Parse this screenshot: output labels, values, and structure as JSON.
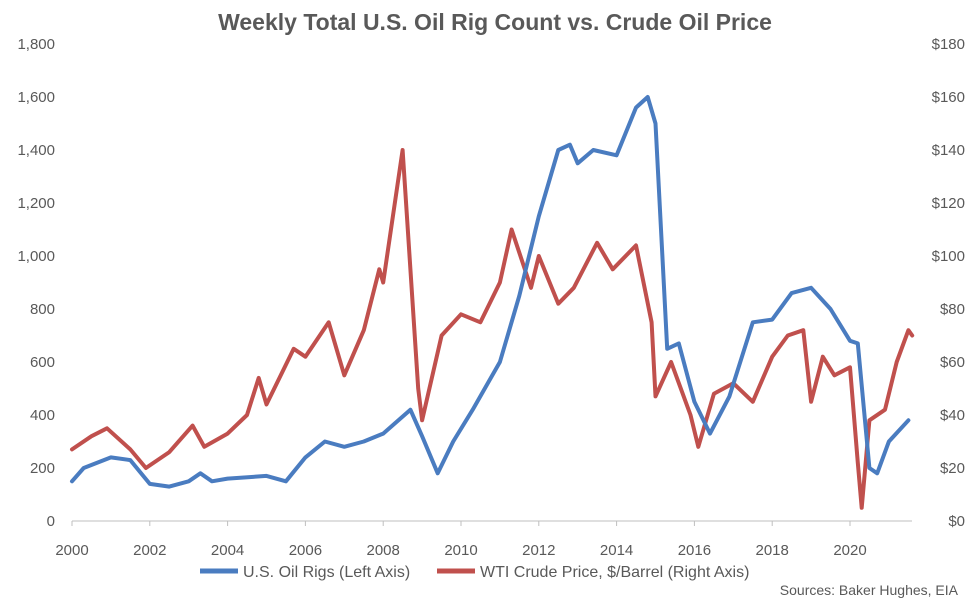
{
  "chart_data": {
    "type": "line",
    "title": "Weekly Total U.S. Oil Rig Count vs. Crude Oil Price",
    "xlabel": "",
    "ylabel_left": "",
    "ylabel_right": "",
    "x_range": [
      2000,
      2021.6
    ],
    "x_ticks": [
      "2000",
      "2002",
      "2004",
      "2006",
      "2008",
      "2010",
      "2012",
      "2014",
      "2016",
      "2018",
      "2020"
    ],
    "ylim_left": [
      0,
      1800
    ],
    "y_ticks_left": [
      "0",
      "200",
      "400",
      "600",
      "800",
      "1,000",
      "1,200",
      "1,400",
      "1,600",
      "1,800"
    ],
    "ylim_right": [
      0,
      180
    ],
    "y_ticks_right": [
      "$0",
      "$20",
      "$40",
      "$60",
      "$80",
      "$100",
      "$120",
      "$140",
      "$160",
      "$180"
    ],
    "grid": false,
    "legend_position": "bottom",
    "source": "Sources: Baker Hughes, EIA",
    "series": [
      {
        "name": "U.S. Oil Rigs (Left Axis)",
        "axis": "left",
        "color": "#4a7cc0",
        "points": [
          [
            2000,
            150
          ],
          [
            2000.3,
            200
          ],
          [
            2001,
            240
          ],
          [
            2001.5,
            230
          ],
          [
            2002,
            140
          ],
          [
            2002.5,
            130
          ],
          [
            2003,
            150
          ],
          [
            2003.3,
            180
          ],
          [
            2003.6,
            150
          ],
          [
            2004,
            160
          ],
          [
            2005,
            170
          ],
          [
            2005.5,
            150
          ],
          [
            2006,
            240
          ],
          [
            2006.5,
            300
          ],
          [
            2007,
            280
          ],
          [
            2007.5,
            300
          ],
          [
            2008,
            330
          ],
          [
            2008.7,
            420
          ],
          [
            2009,
            320
          ],
          [
            2009.4,
            180
          ],
          [
            2009.8,
            300
          ],
          [
            2010.3,
            420
          ],
          [
            2011,
            600
          ],
          [
            2011.5,
            850
          ],
          [
            2012,
            1150
          ],
          [
            2012.5,
            1400
          ],
          [
            2012.8,
            1420
          ],
          [
            2013,
            1350
          ],
          [
            2013.4,
            1400
          ],
          [
            2014,
            1380
          ],
          [
            2014.5,
            1560
          ],
          [
            2014.8,
            1600
          ],
          [
            2015,
            1500
          ],
          [
            2015.3,
            650
          ],
          [
            2015.6,
            670
          ],
          [
            2016,
            450
          ],
          [
            2016.4,
            330
          ],
          [
            2016.9,
            470
          ],
          [
            2017.5,
            750
          ],
          [
            2018,
            760
          ],
          [
            2018.5,
            860
          ],
          [
            2019,
            880
          ],
          [
            2019.5,
            800
          ],
          [
            2020,
            680
          ],
          [
            2020.2,
            670
          ],
          [
            2020.5,
            200
          ],
          [
            2020.7,
            180
          ],
          [
            2021,
            300
          ],
          [
            2021.5,
            380
          ]
        ]
      },
      {
        "name": "WTI Crude Price, $/Barrel (Right Axis)",
        "axis": "right",
        "color": "#c0504d",
        "points": [
          [
            2000,
            27
          ],
          [
            2000.5,
            32
          ],
          [
            2000.9,
            35
          ],
          [
            2001.5,
            27
          ],
          [
            2001.9,
            20
          ],
          [
            2002.5,
            26
          ],
          [
            2003.1,
            36
          ],
          [
            2003.4,
            28
          ],
          [
            2004,
            33
          ],
          [
            2004.5,
            40
          ],
          [
            2004.8,
            54
          ],
          [
            2005,
            44
          ],
          [
            2005.7,
            65
          ],
          [
            2006,
            62
          ],
          [
            2006.6,
            75
          ],
          [
            2007,
            55
          ],
          [
            2007.5,
            72
          ],
          [
            2007.9,
            95
          ],
          [
            2008,
            90
          ],
          [
            2008.5,
            140
          ],
          [
            2008.9,
            50
          ],
          [
            2009,
            38
          ],
          [
            2009.5,
            70
          ],
          [
            2010,
            78
          ],
          [
            2010.5,
            75
          ],
          [
            2011,
            90
          ],
          [
            2011.3,
            110
          ],
          [
            2011.8,
            88
          ],
          [
            2012,
            100
          ],
          [
            2012.5,
            82
          ],
          [
            2012.9,
            88
          ],
          [
            2013.5,
            105
          ],
          [
            2013.9,
            95
          ],
          [
            2014.5,
            104
          ],
          [
            2014.9,
            75
          ],
          [
            2015,
            47
          ],
          [
            2015.4,
            60
          ],
          [
            2015.9,
            40
          ],
          [
            2016.1,
            28
          ],
          [
            2016.5,
            48
          ],
          [
            2017,
            52
          ],
          [
            2017.5,
            45
          ],
          [
            2018,
            62
          ],
          [
            2018.4,
            70
          ],
          [
            2018.8,
            72
          ],
          [
            2019,
            45
          ],
          [
            2019.3,
            62
          ],
          [
            2019.6,
            55
          ],
          [
            2020,
            58
          ],
          [
            2020.2,
            22
          ],
          [
            2020.3,
            5
          ],
          [
            2020.5,
            38
          ],
          [
            2020.9,
            42
          ],
          [
            2021.2,
            60
          ],
          [
            2021.5,
            72
          ],
          [
            2021.6,
            70
          ]
        ]
      }
    ]
  }
}
